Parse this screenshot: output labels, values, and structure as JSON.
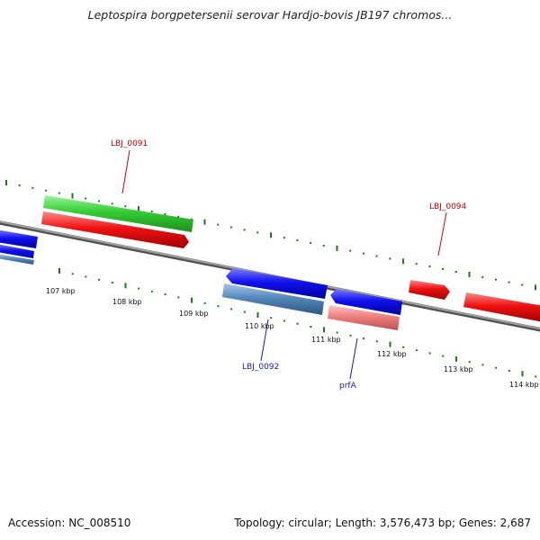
{
  "title": "Leptospira borgpetersenii serovar Hardjo-bovis JB197 chromos...",
  "footer": {
    "accession": "Accession: NC_008510",
    "topology": "Topology: circular; Length: 3,576,473 bp; Genes: 2,687"
  },
  "colors": {
    "backbone": "#808080",
    "tick": "#1e7a1e",
    "label_red": "#cc0000",
    "label_blue": "#1a1aaa",
    "green_feature": "#3fcf3f",
    "red_feature": "#ee1111",
    "blue_feature": "#1111ee",
    "steel_feature": "#5588bb",
    "pink_feature": "#ee8080"
  },
  "scale_labels": [
    "107 kbp",
    "108 kbp",
    "109 kbp",
    "110 kbp",
    "111 kbp",
    "112 kbp",
    "113 kbp",
    "114 kbp"
  ],
  "gene_labels": [
    {
      "text": "LBJ_0091",
      "color": "red"
    },
    {
      "text": "LBJ_0094",
      "color": "red"
    },
    {
      "text": "LBJ_0092",
      "color": "blue"
    },
    {
      "text": "prfA",
      "color": "blue"
    }
  ]
}
